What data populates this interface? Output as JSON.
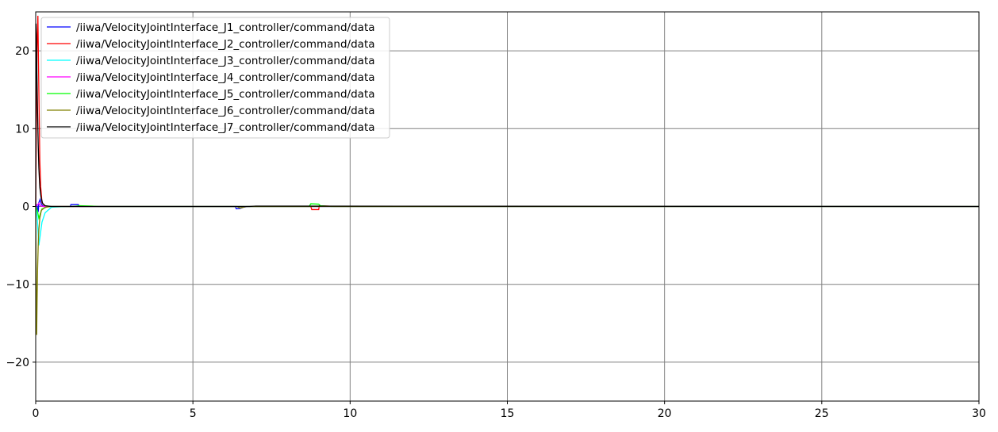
{
  "chart_data": {
    "type": "line",
    "title": "",
    "xlabel": "",
    "ylabel": "",
    "xlim": [
      0,
      30
    ],
    "ylim": [
      -25,
      25
    ],
    "x_ticks": [
      0,
      5,
      10,
      15,
      20,
      25,
      30
    ],
    "y_ticks": [
      -20,
      -10,
      0,
      10,
      20
    ],
    "grid": true,
    "legend": {
      "position": "top-left"
    },
    "series": [
      {
        "name": "/iiwa/VelocityJointInterface_J1_controller/command/data",
        "color": "#0000ff",
        "x": [
          0,
          0.04,
          0.08,
          0.1,
          0.14,
          0.18,
          0.25,
          0.4,
          1.1,
          1.12,
          1.35,
          1.4,
          1.6,
          6.35,
          6.38,
          6.5,
          6.6,
          6.75,
          30
        ],
        "y": [
          0,
          0.2,
          -0.7,
          0.5,
          0.9,
          0.3,
          0,
          0,
          0,
          0.25,
          0.25,
          0,
          0,
          0,
          -0.3,
          -0.25,
          -0.1,
          0,
          0
        ]
      },
      {
        "name": "/iiwa/VelocityJointInterface_J2_controller/command/data",
        "color": "#ff0000",
        "x": [
          0,
          0.04,
          0.07,
          0.09,
          0.11,
          0.13,
          0.16,
          0.2,
          0.3,
          0.5,
          8.75,
          8.78,
          9.0,
          9.02,
          9.3,
          9.5,
          30
        ],
        "y": [
          0,
          20,
          24.5,
          18,
          12,
          6,
          2.5,
          0.5,
          0,
          0,
          0,
          -0.4,
          -0.4,
          0.1,
          0.05,
          0,
          0
        ]
      },
      {
        "name": "/iiwa/VelocityJointInterface_J3_controller/command/data",
        "color": "#00ffff",
        "x": [
          0,
          0.05,
          0.1,
          0.15,
          0.2,
          0.3,
          0.5,
          1.0,
          30
        ],
        "y": [
          0,
          -1.5,
          -5,
          -3.5,
          -2,
          -0.8,
          -0.1,
          0,
          0
        ]
      },
      {
        "name": "/iiwa/VelocityJointInterface_J4_controller/command/data",
        "color": "#ff00ff",
        "x": [
          0,
          0.05,
          0.1,
          0.15,
          0.25,
          0.5,
          30
        ],
        "y": [
          0,
          0.2,
          0.4,
          0.1,
          0,
          0,
          0
        ]
      },
      {
        "name": "/iiwa/VelocityJointInterface_J5_controller/command/data",
        "color": "#00ff00",
        "x": [
          0,
          0.05,
          0.1,
          0.2,
          0.4,
          1.2,
          1.4,
          1.8,
          2.0,
          8.7,
          8.75,
          9.0,
          9.05,
          9.4,
          30
        ],
        "y": [
          0,
          -0.5,
          -1.5,
          -0.3,
          0,
          0,
          0.1,
          0.05,
          0,
          0,
          0.35,
          0.3,
          0.1,
          0,
          0
        ]
      },
      {
        "name": "/iiwa/VelocityJointInterface_J6_controller/command/data",
        "color": "#808000",
        "x": [
          0,
          0.015,
          0.03,
          0.045,
          0.06,
          0.08,
          0.1,
          0.13,
          0.18,
          0.3,
          0.5,
          6.4,
          6.5,
          6.7,
          30
        ],
        "y": [
          0,
          -10,
          -16.5,
          -12,
          -8,
          -5,
          -3,
          -1.5,
          -0.5,
          -0.1,
          0,
          0,
          -0.2,
          0,
          0
        ]
      },
      {
        "name": "/iiwa/VelocityJointInterface_J7_controller/command/data",
        "color": "#000000",
        "x": [
          0,
          0.01,
          0.02,
          0.04,
          0.06,
          0.08,
          0.1,
          0.13,
          0.17,
          0.22,
          0.3,
          0.5,
          1.0,
          1.5,
          1.8,
          6.8,
          7.0,
          30
        ],
        "y": [
          0,
          23.5,
          22,
          16.5,
          12,
          8,
          5,
          2.5,
          1.2,
          0.4,
          0.1,
          0,
          0,
          0,
          0,
          0,
          0.05,
          0
        ]
      }
    ]
  }
}
